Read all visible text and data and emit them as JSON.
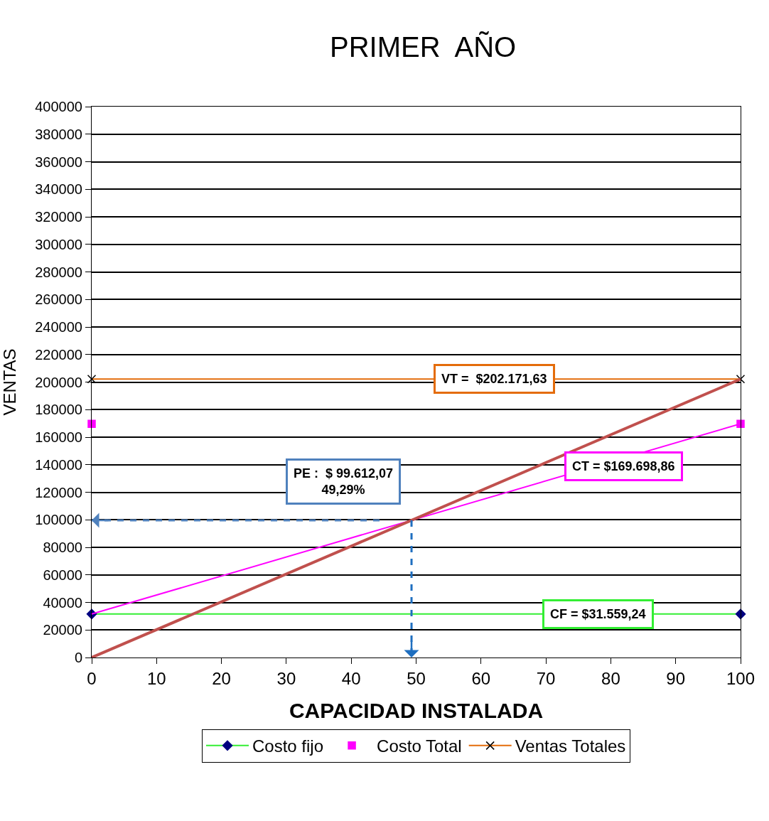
{
  "chart_data": {
    "type": "line",
    "title": "PRIMER  AÑO",
    "xlabel": "CAPACIDAD INSTALADA",
    "ylabel": "VENTAS",
    "x": [
      0,
      100
    ],
    "xlim": [
      0,
      100
    ],
    "xticks": [
      0,
      10,
      20,
      30,
      40,
      50,
      60,
      70,
      80,
      90,
      100
    ],
    "ylim": [
      0,
      400000
    ],
    "yticks": [
      0,
      20000,
      40000,
      60000,
      80000,
      100000,
      120000,
      140000,
      160000,
      180000,
      200000,
      220000,
      240000,
      260000,
      280000,
      300000,
      320000,
      340000,
      360000,
      380000,
      400000
    ],
    "grid": "y",
    "legend": "bottom",
    "series": [
      {
        "name": "Costo fijo",
        "color": "#33ee33",
        "colors": [
          "#000080",
          "#000080"
        ],
        "marker": "diamond",
        "values": [
          31559.24,
          31559.24
        ]
      },
      {
        "name": "Costo Total",
        "type": "scatter",
        "color": "#ff00ff",
        "marker": "square",
        "values": [
          169698.86,
          169698.86
        ]
      },
      {
        "name": "Ventas Totales",
        "color": "#e46c0a",
        "colors": [
          "#000000",
          "#000000"
        ],
        "marker": "cross",
        "values": [
          202171.63,
          202171.63
        ]
      },
      {
        "color": "#ff00ff",
        "marker": "none",
        "values": [
          31559.24,
          169698.86
        ]
      },
      {
        "color": "#c0504d",
        "marker": "none",
        "values": [
          0,
          202171.63
        ]
      }
    ],
    "annotations": [
      {
        "text": "VT =  $202.171,63",
        "x": 62,
        "y": 202171.63
      },
      {
        "text": "CT = $169.698,86",
        "x": 82,
        "y": 144834
      },
      {
        "text": "PE :  $ 99.612,07\n49,29%",
        "x": 49.29,
        "y": 99612.07
      },
      {
        "text": "CF = $31.559,24",
        "x": 78,
        "y": 31559.24
      }
    ]
  }
}
